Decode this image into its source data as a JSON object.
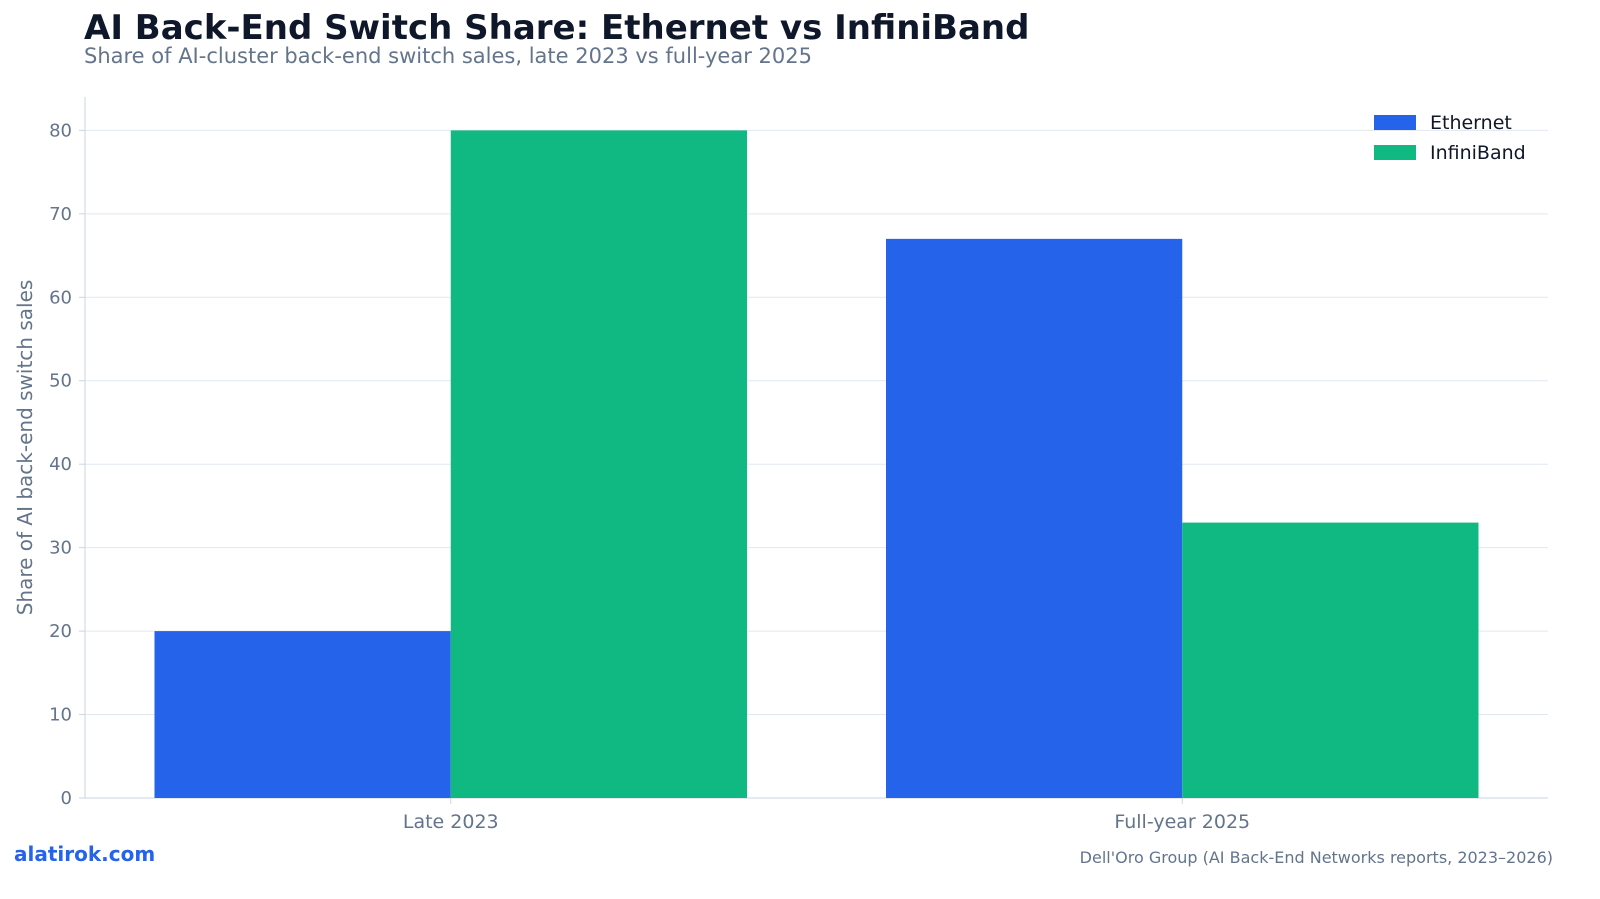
{
  "header": {
    "title": "AI Back-End Switch Share: Ethernet vs InfiniBand",
    "subtitle": "Share of AI-cluster back-end switch sales, late 2023 vs full-year 2025"
  },
  "footer": {
    "brand": "alatirok.com",
    "source": "Dell'Oro Group (AI Back-End Networks reports, 2023–2026)"
  },
  "chart_data": {
    "type": "bar",
    "title": "AI Back-End Switch Share: Ethernet vs InfiniBand",
    "subtitle": "Share of AI-cluster back-end switch sales, late 2023 vs full-year 2025",
    "xlabel": "",
    "ylabel": "Share of AI back-end switch sales",
    "categories": [
      "Late 2023",
      "Full-year 2025"
    ],
    "series": [
      {
        "name": "Ethernet",
        "values": [
          20,
          67
        ],
        "color": "#2563eb"
      },
      {
        "name": "InfiniBand",
        "values": [
          80,
          33
        ],
        "color": "#10b981"
      }
    ],
    "ylim": [
      0,
      84
    ],
    "yticks": [
      0,
      10,
      20,
      30,
      40,
      50,
      60,
      70,
      80
    ],
    "grid": true,
    "legend_position": "top-right"
  }
}
